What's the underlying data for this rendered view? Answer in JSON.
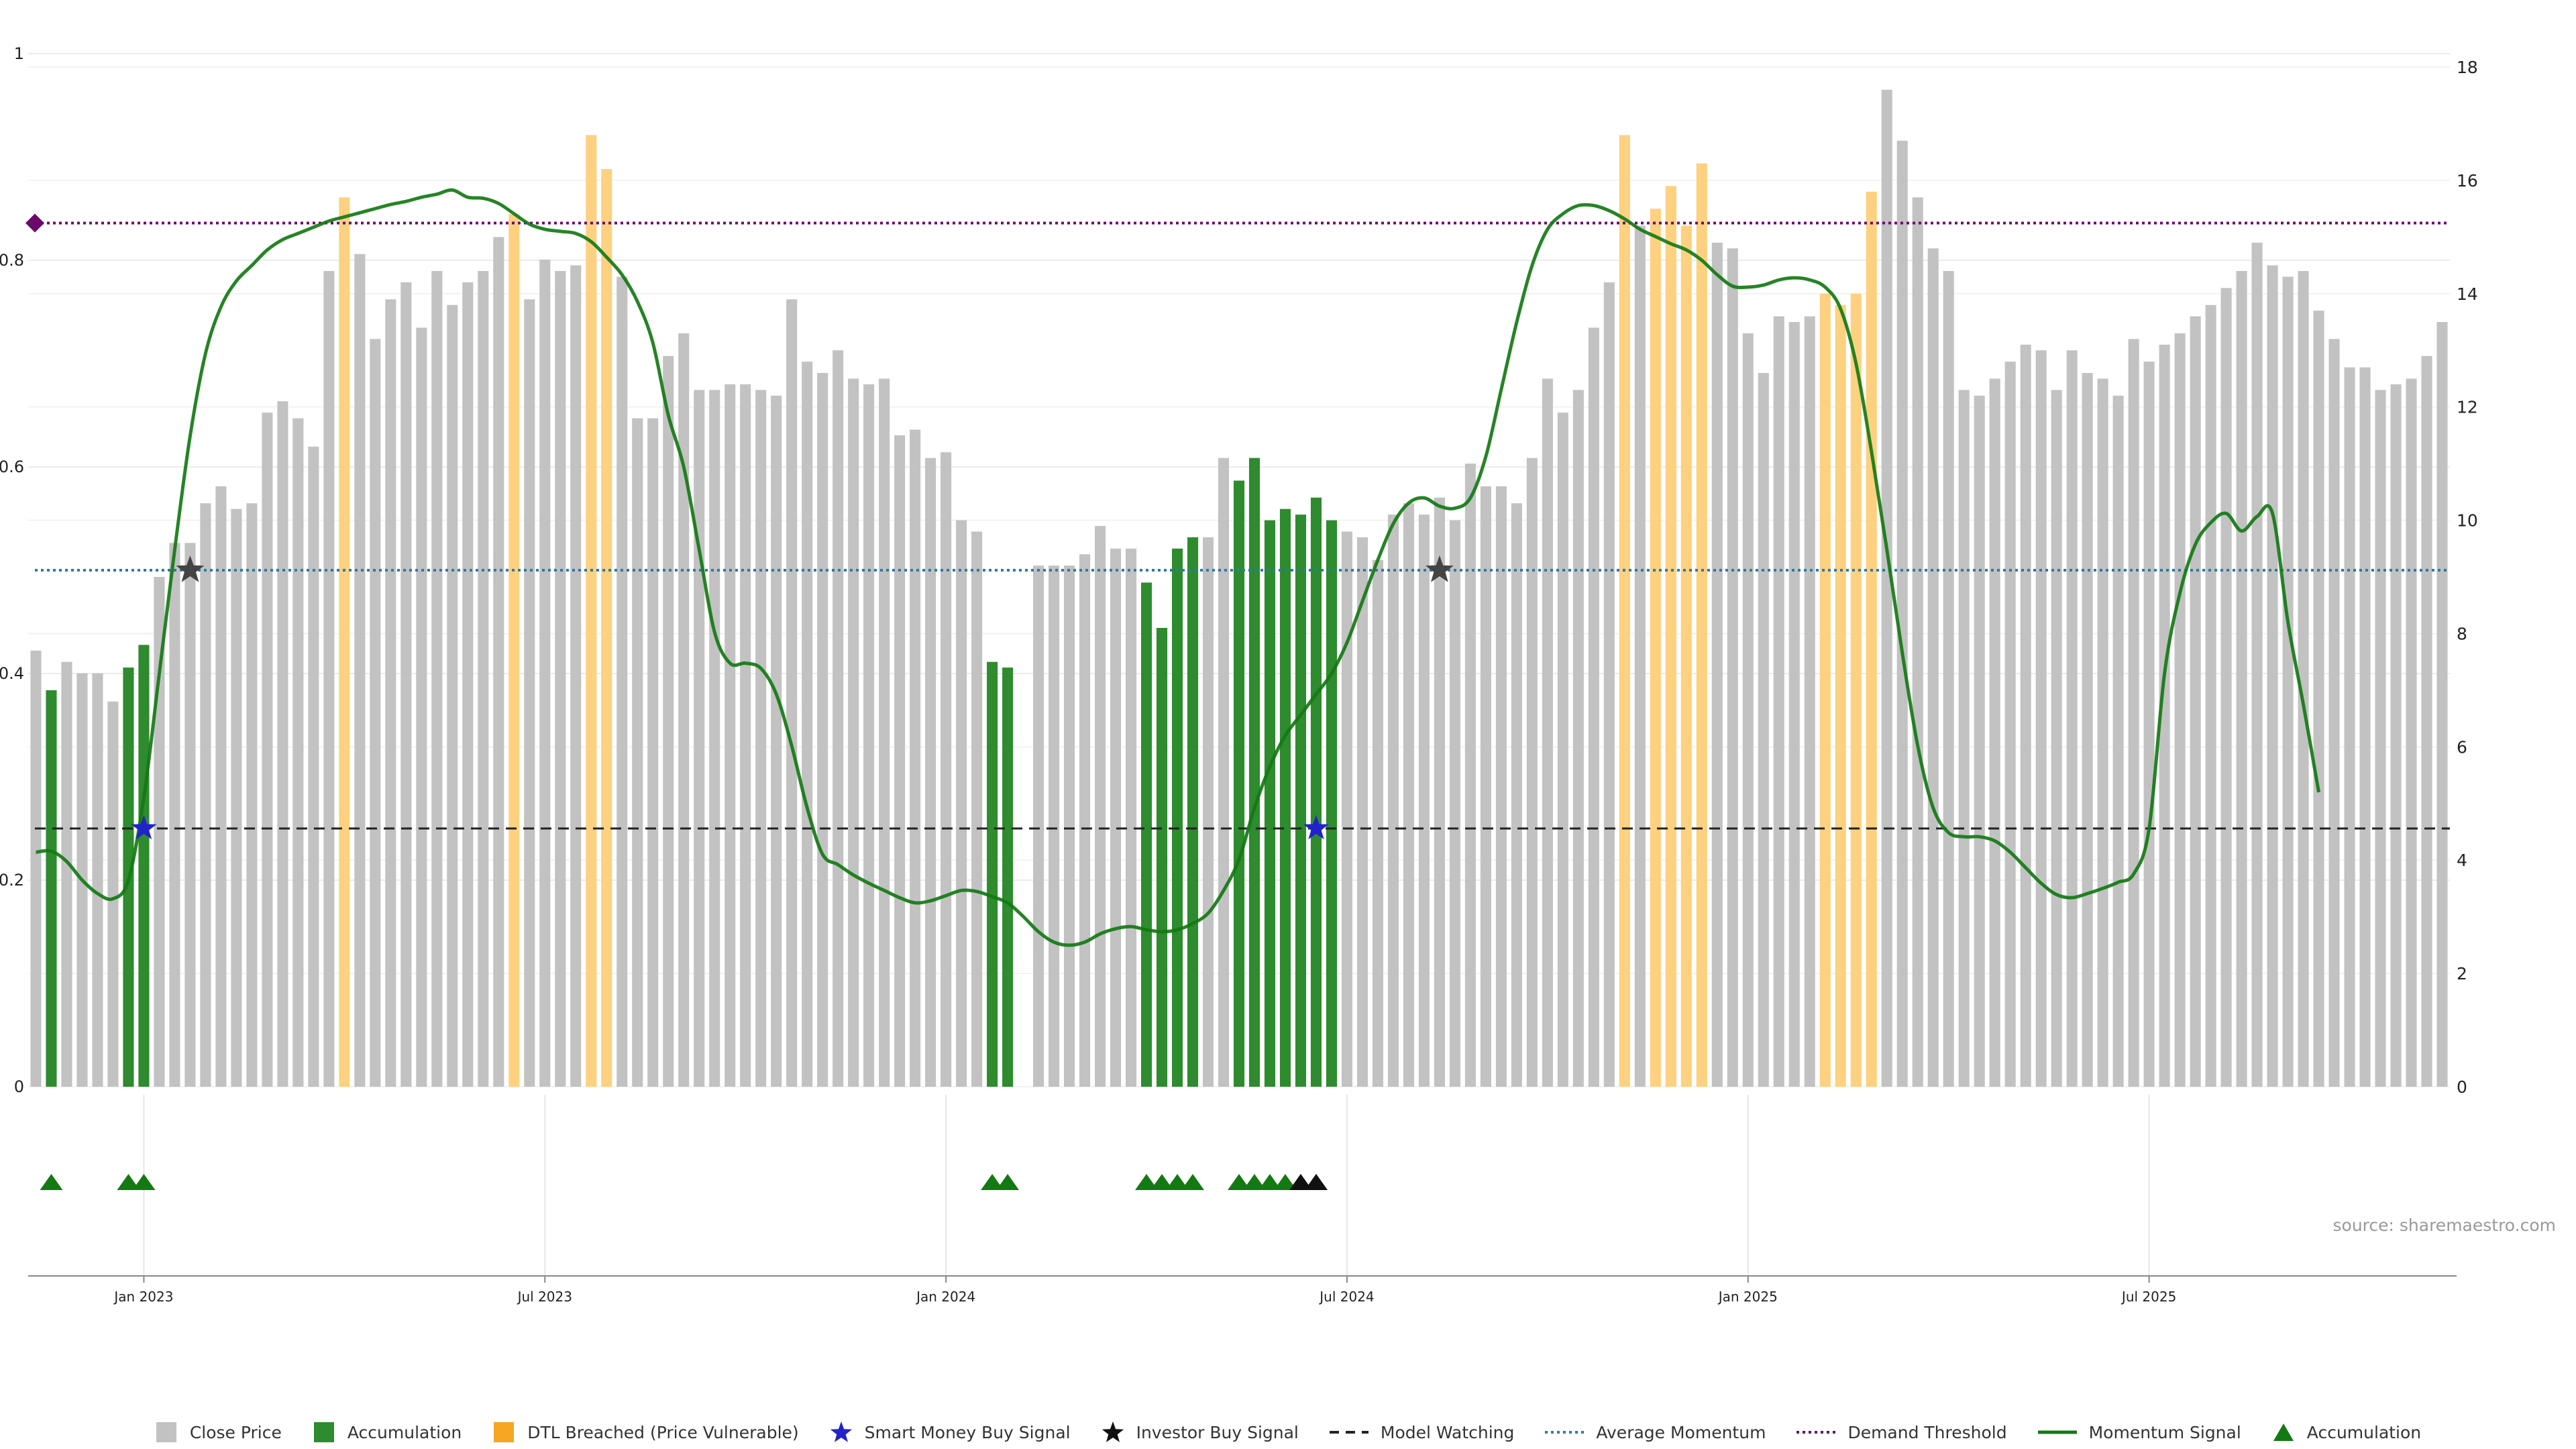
{
  "colors": {
    "close": "#c2c2c2",
    "accumulation": "#2e8b2e",
    "dtl": "#fdd180",
    "smart_money": "#2222cc",
    "investor": "#111111",
    "model_watching": "#222222",
    "average_momentum": "#2a7bab",
    "demand_threshold": "#6a0a6a",
    "momentum": "#137a13",
    "accumulation_marker": "#137a13"
  },
  "source_note": "source: sharemaestro.com",
  "legend": [
    {
      "label": "Close Price",
      "icon": "square-icon",
      "color": "#c2c2c2"
    },
    {
      "label": "Accumulation",
      "icon": "square-icon",
      "color": "#2e8b2e"
    },
    {
      "label": "DTL Breached (Price Vulnerable)",
      "icon": "square-icon",
      "color": "#f5a623"
    },
    {
      "label": "Smart Money Buy Signal",
      "icon": "star-icon",
      "color": "#2222cc"
    },
    {
      "label": "Investor Buy Signal",
      "icon": "star-icon",
      "color": "#111111"
    },
    {
      "label": "Model Watching",
      "icon": "dashed-line-icon",
      "color": "#222222"
    },
    {
      "label": "Average Momentum",
      "icon": "dotted-line-icon",
      "color": "#2a7bab"
    },
    {
      "label": "Demand Threshold",
      "icon": "dotted-line-icon",
      "color": "#6a0a6a"
    },
    {
      "label": "Momentum Signal",
      "icon": "solid-line-icon",
      "color": "#137a13"
    },
    {
      "label": "Accumulation",
      "icon": "triangle-icon",
      "color": "#137a13"
    }
  ],
  "chart_data": {
    "type": "bar",
    "x_ticks": [
      "Jan 2023",
      "Jul 2023",
      "Jan 2024",
      "Jul 2024",
      "Jan 2025",
      "Jul 2025"
    ],
    "x_tick_bar_index": [
      7,
      33,
      59,
      85,
      111,
      137
    ],
    "left_axis": {
      "ticks": [
        "0",
        "0.2",
        "0.4",
        "0.6",
        "0.8",
        "1"
      ],
      "ylim": [
        0,
        1
      ]
    },
    "right_axis": {
      "ticks": [
        "0",
        "2",
        "4",
        "6",
        "8",
        "10",
        "12",
        "14",
        "16",
        "18"
      ],
      "ylim": [
        0,
        18
      ]
    },
    "bar_values": [
      7.7,
      7.0,
      7.5,
      7.3,
      7.3,
      6.8,
      7.4,
      7.8,
      9.0,
      9.6,
      9.6,
      10.3,
      10.6,
      10.2,
      10.3,
      11.9,
      12.1,
      11.8,
      11.3,
      14.4,
      15.7,
      14.7,
      13.2,
      13.9,
      14.2,
      13.4,
      14.4,
      13.8,
      14.2,
      14.4,
      15.0,
      15.4,
      13.9,
      14.6,
      14.4,
      14.5,
      16.8,
      16.2,
      14.3,
      11.8,
      11.8,
      12.9,
      13.3,
      12.3,
      12.3,
      12.4,
      12.4,
      12.3,
      12.2,
      13.9,
      12.8,
      12.6,
      13.0,
      12.5,
      12.4,
      12.5,
      11.5,
      11.6,
      11.1,
      11.2,
      10.0,
      9.8,
      7.5,
      7.4,
      0.0,
      9.2,
      9.2,
      9.2,
      9.4,
      9.9,
      9.5,
      9.5,
      8.9,
      8.1,
      9.5,
      9.7,
      9.7,
      11.1,
      10.7,
      11.1,
      10.0,
      10.2,
      10.1,
      10.4,
      10.0,
      9.8,
      9.7,
      9.3,
      10.1,
      10.3,
      10.1,
      10.4,
      10.0,
      11.0,
      10.6,
      10.6,
      10.3,
      11.1,
      12.5,
      11.9,
      12.3,
      13.4,
      14.2,
      16.8,
      15.2,
      15.5,
      15.9,
      15.2,
      16.3,
      14.9,
      14.8,
      13.3,
      12.6,
      13.6,
      13.5,
      13.6,
      14.0,
      13.8,
      14.0,
      15.8,
      17.6,
      16.7,
      15.7,
      14.8,
      14.4,
      12.3,
      12.2,
      12.5,
      12.8,
      13.1,
      13.0,
      12.3,
      13.0,
      12.6,
      12.5,
      12.2,
      13.2,
      12.8,
      13.1,
      13.3,
      13.6,
      13.8,
      14.1,
      14.4,
      14.9,
      14.5,
      14.3,
      14.4,
      13.7,
      13.2,
      12.7,
      12.7,
      12.3,
      12.4,
      12.5,
      12.9,
      13.5
    ],
    "accumulation_bars": [
      1,
      6,
      7,
      62,
      63,
      72,
      73,
      74,
      75,
      78,
      79,
      80,
      81,
      82,
      83,
      84
    ],
    "dtl_bars": [
      20,
      31,
      36,
      37,
      103,
      105,
      106,
      107,
      108,
      116,
      117,
      118,
      119
    ],
    "model_watching_level": 0.25,
    "average_momentum_level": 0.5,
    "demand_threshold_level": 0.836,
    "smart_money_signals": [
      {
        "bar": 7,
        "level": 0.25
      },
      {
        "bar": 83,
        "level": 0.25
      }
    ],
    "investor_signals": [
      {
        "bar": 10,
        "level": 0.5
      },
      {
        "bar": 91,
        "level": 0.5
      }
    ],
    "momentum_signal": [
      [
        0,
        0.227
      ],
      [
        1,
        0.228
      ],
      [
        2,
        0.218
      ],
      [
        3,
        0.2
      ],
      [
        4,
        0.187
      ],
      [
        5,
        0.182
      ],
      [
        6,
        0.2
      ],
      [
        7,
        0.28
      ],
      [
        8,
        0.4
      ],
      [
        9,
        0.52
      ],
      [
        10,
        0.63
      ],
      [
        11,
        0.71
      ],
      [
        12,
        0.755
      ],
      [
        13,
        0.78
      ],
      [
        14,
        0.795
      ],
      [
        15,
        0.81
      ],
      [
        16,
        0.82
      ],
      [
        17,
        0.826
      ],
      [
        18,
        0.832
      ],
      [
        19,
        0.838
      ],
      [
        20,
        0.842
      ],
      [
        21,
        0.846
      ],
      [
        22,
        0.85
      ],
      [
        23,
        0.854
      ],
      [
        24,
        0.857
      ],
      [
        25,
        0.861
      ],
      [
        26,
        0.864
      ],
      [
        27,
        0.868
      ],
      [
        28,
        0.861
      ],
      [
        29,
        0.86
      ],
      [
        30,
        0.855
      ],
      [
        31,
        0.845
      ],
      [
        32,
        0.835
      ],
      [
        33,
        0.83
      ],
      [
        34,
        0.828
      ],
      [
        35,
        0.826
      ],
      [
        36,
        0.818
      ],
      [
        37,
        0.803
      ],
      [
        38,
        0.786
      ],
      [
        39,
        0.76
      ],
      [
        40,
        0.72
      ],
      [
        41,
        0.65
      ],
      [
        42,
        0.6
      ],
      [
        43,
        0.52
      ],
      [
        44,
        0.44
      ],
      [
        45,
        0.41
      ],
      [
        46,
        0.41
      ],
      [
        47,
        0.405
      ],
      [
        48,
        0.38
      ],
      [
        49,
        0.33
      ],
      [
        50,
        0.27
      ],
      [
        51,
        0.225
      ],
      [
        52,
        0.215
      ],
      [
        53,
        0.205
      ],
      [
        54,
        0.197
      ],
      [
        55,
        0.19
      ],
      [
        56,
        0.183
      ],
      [
        57,
        0.178
      ],
      [
        58,
        0.18
      ],
      [
        59,
        0.185
      ],
      [
        60,
        0.19
      ],
      [
        61,
        0.189
      ],
      [
        62,
        0.184
      ],
      [
        63,
        0.178
      ],
      [
        64,
        0.165
      ],
      [
        65,
        0.15
      ],
      [
        66,
        0.14
      ],
      [
        67,
        0.137
      ],
      [
        68,
        0.14
      ],
      [
        69,
        0.148
      ],
      [
        70,
        0.153
      ],
      [
        71,
        0.155
      ],
      [
        72,
        0.152
      ],
      [
        73,
        0.15
      ],
      [
        74,
        0.152
      ],
      [
        75,
        0.158
      ],
      [
        76,
        0.168
      ],
      [
        77,
        0.19
      ],
      [
        78,
        0.22
      ],
      [
        79,
        0.27
      ],
      [
        80,
        0.31
      ],
      [
        81,
        0.34
      ],
      [
        82,
        0.36
      ],
      [
        83,
        0.38
      ],
      [
        84,
        0.4
      ],
      [
        85,
        0.43
      ],
      [
        86,
        0.47
      ],
      [
        87,
        0.51
      ],
      [
        88,
        0.545
      ],
      [
        89,
        0.565
      ],
      [
        90,
        0.57
      ],
      [
        91,
        0.562
      ],
      [
        92,
        0.56
      ],
      [
        93,
        0.57
      ],
      [
        94,
        0.61
      ],
      [
        95,
        0.675
      ],
      [
        96,
        0.74
      ],
      [
        97,
        0.795
      ],
      [
        98,
        0.83
      ],
      [
        99,
        0.845
      ],
      [
        100,
        0.853
      ],
      [
        101,
        0.853
      ],
      [
        102,
        0.848
      ],
      [
        103,
        0.84
      ],
      [
        104,
        0.83
      ],
      [
        105,
        0.823
      ],
      [
        106,
        0.816
      ],
      [
        107,
        0.81
      ],
      [
        108,
        0.8
      ],
      [
        109,
        0.786
      ],
      [
        110,
        0.775
      ],
      [
        111,
        0.774
      ],
      [
        112,
        0.776
      ],
      [
        113,
        0.781
      ],
      [
        114,
        0.783
      ],
      [
        115,
        0.781
      ],
      [
        116,
        0.774
      ],
      [
        117,
        0.753
      ],
      [
        118,
        0.7
      ],
      [
        119,
        0.615
      ],
      [
        120,
        0.52
      ],
      [
        121,
        0.42
      ],
      [
        122,
        0.33
      ],
      [
        123,
        0.27
      ],
      [
        124,
        0.246
      ],
      [
        125,
        0.242
      ],
      [
        126,
        0.242
      ],
      [
        127,
        0.238
      ],
      [
        128,
        0.227
      ],
      [
        129,
        0.212
      ],
      [
        130,
        0.197
      ],
      [
        131,
        0.186
      ],
      [
        132,
        0.183
      ],
      [
        133,
        0.187
      ],
      [
        134,
        0.192
      ],
      [
        135,
        0.198
      ],
      [
        136,
        0.206
      ],
      [
        137,
        0.25
      ],
      [
        138,
        0.4
      ],
      [
        139,
        0.478
      ],
      [
        140,
        0.525
      ],
      [
        141,
        0.546
      ],
      [
        142,
        0.555
      ],
      [
        143,
        0.538
      ],
      [
        144,
        0.552
      ],
      [
        145,
        0.555
      ],
      [
        146,
        0.45
      ],
      [
        147,
        0.37
      ],
      [
        148,
        0.285
      ]
    ],
    "accumulation_markers": [
      1,
      6,
      7,
      62,
      63,
      72,
      73,
      74,
      75,
      78,
      79,
      80,
      81,
      82,
      83
    ],
    "investor_markers": [
      82,
      83
    ]
  }
}
